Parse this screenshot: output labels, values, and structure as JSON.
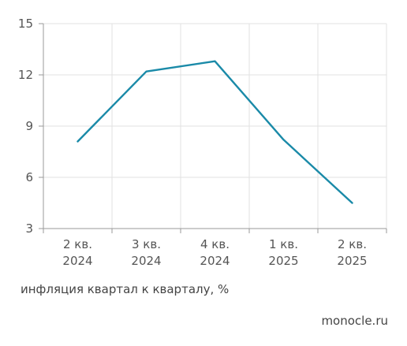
{
  "chart_data": {
    "type": "line",
    "categories": [
      [
        "2 кв.",
        "2024"
      ],
      [
        "3 кв.",
        "2024"
      ],
      [
        "4 кв.",
        "2024"
      ],
      [
        "1 кв.",
        "2025"
      ],
      [
        "2 кв.",
        "2025"
      ]
    ],
    "series": [
      {
        "values": [
          8.1,
          12.2,
          12.8,
          8.2,
          4.5
        ],
        "color": "#1a8aa8"
      }
    ],
    "yticks": [
      "3",
      "6",
      "9",
      "12",
      "15"
    ],
    "ylim": [
      3,
      15
    ],
    "grid": true
  },
  "caption": "инфляция квартал к кварталу, %",
  "source": "monocle.ru"
}
